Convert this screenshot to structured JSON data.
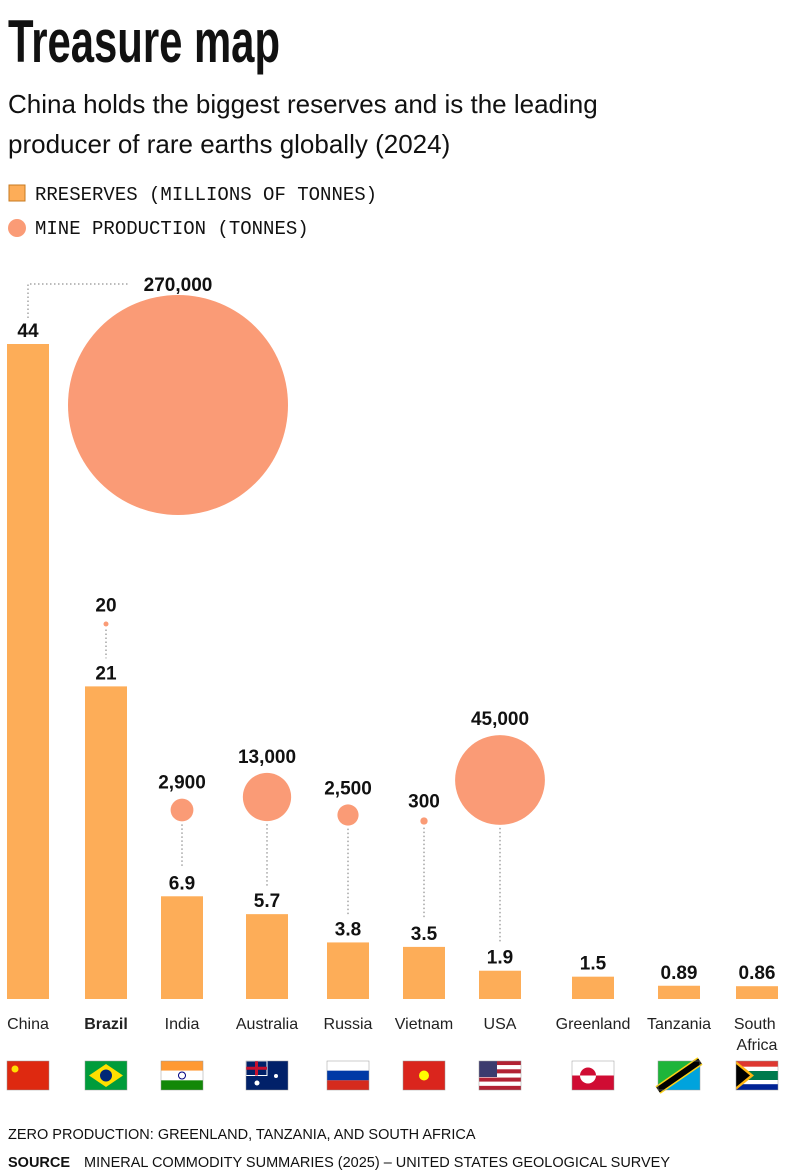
{
  "chart_data": {
    "type": "bar-bubble",
    "title": "Treasure map",
    "subtitle": "China holds the biggest reserves and is the leading producer of rare earths globally (2024)",
    "categories": [
      "China",
      "Brazil",
      "India",
      "Australia",
      "Russia",
      "Vietnam",
      "USA",
      "Greenland",
      "Tanzania",
      "South Africa"
    ],
    "highlight_index": 1,
    "series": [
      {
        "name": "RRESERVES (MILLIONS OF TONNES)",
        "color": "#fdad58",
        "values": [
          44,
          21,
          6.9,
          5.7,
          3.8,
          3.5,
          1.9,
          1.5,
          0.89,
          0.86
        ]
      },
      {
        "name": "MINE PRODUCTION (TONNES)",
        "color": "#fa9b76",
        "values": [
          270000,
          20,
          2900,
          13000,
          2500,
          300,
          45000,
          null,
          null,
          null
        ],
        "value_labels": [
          "270,000",
          "20",
          "2,900",
          "13,000",
          "2,500",
          "300",
          "45,000",
          null,
          null,
          null
        ]
      }
    ],
    "note": "ZERO PRODUCTION: GREENLAND, TANZANIA, AND SOUTH AFRICA",
    "source_label": "SOURCE",
    "source": "MINERAL COMMODITY SUMMARIES (2025) – UNITED STATES GEOLOGICAL SURVEY"
  }
}
